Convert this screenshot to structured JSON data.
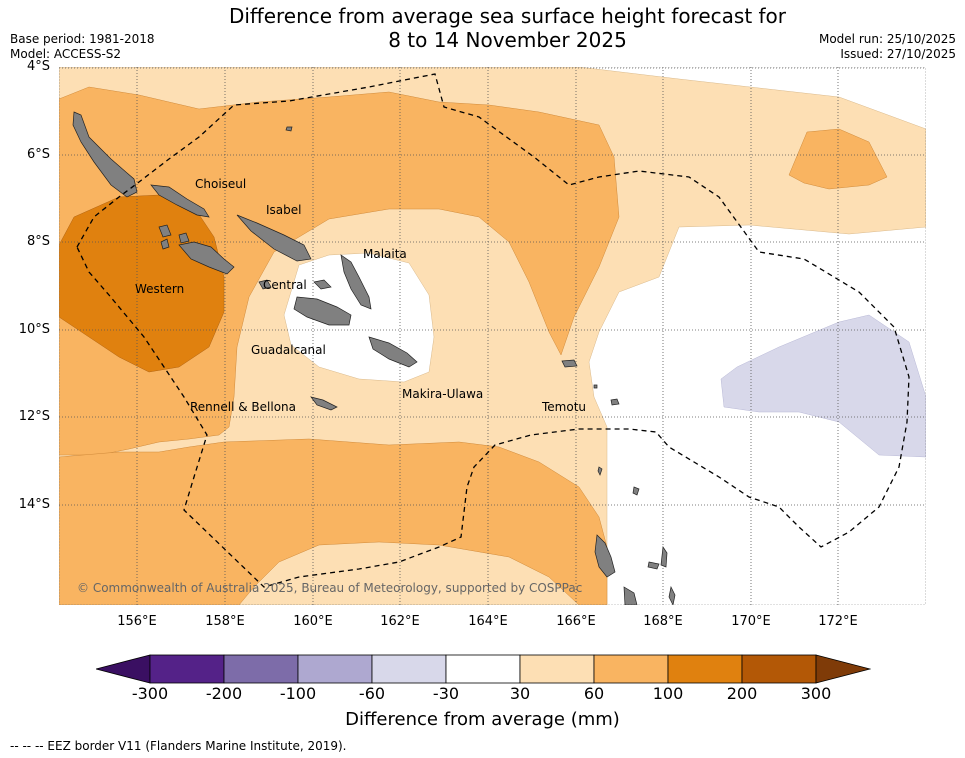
{
  "title": {
    "line1": "Difference from average sea surface height forecast for",
    "line2": "8 to 14 November 2025"
  },
  "meta": {
    "base_period": "Base period: 1981-2018",
    "model": "Model: ACCESS-S2",
    "model_run": "Model run: 25/10/2025",
    "issued": "Issued: 27/10/2025"
  },
  "axes": {
    "lat_labels": [
      "4°S",
      "6°S",
      "8°S",
      "10°S",
      "12°S",
      "14°S"
    ],
    "lon_labels": [
      "156°E",
      "158°E",
      "160°E",
      "162°E",
      "164°E",
      "166°E",
      "168°E",
      "170°E",
      "172°E"
    ]
  },
  "provinces": [
    {
      "name": "Choiseul"
    },
    {
      "name": "Isabel"
    },
    {
      "name": "Malaita"
    },
    {
      "name": "Western"
    },
    {
      "name": "Central"
    },
    {
      "name": "Guadalcanal"
    },
    {
      "name": "Makira-Ulawa"
    },
    {
      "name": "Rennell & Bellona"
    },
    {
      "name": "Temotu"
    }
  ],
  "copyright": "© Commonwealth of Australia 2025, Bureau of Meteorology, supported by COSPPac",
  "colorbar": {
    "title": "Difference from average (mm)",
    "ticks": [
      "-300",
      "-200",
      "-100",
      "-60",
      "-30",
      "30",
      "60",
      "100",
      "200",
      "300"
    ],
    "colors": [
      "#3a0f62",
      "#542288",
      "#7d6ca9",
      "#aea8d0",
      "#d8d8ea",
      "#ffffff",
      "#fddfb4",
      "#f9b461",
      "#e0810f",
      "#b35806",
      "#7f3b08"
    ]
  },
  "footer": "--  --  -- EEZ border V11 (Flanders Marine Institute, 2019)."
}
